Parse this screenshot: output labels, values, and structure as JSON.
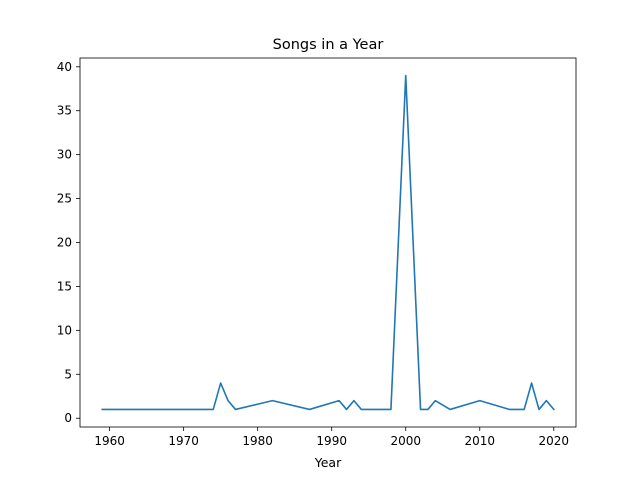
{
  "chart_data": {
    "type": "line",
    "title": "Songs in a Year",
    "xlabel": "Year",
    "ylabel": "",
    "xlim": [
      1956,
      2023
    ],
    "ylim": [
      -1,
      41
    ],
    "x_ticks": [
      1960,
      1970,
      1980,
      1990,
      2000,
      2010,
      2020
    ],
    "y_ticks": [
      0,
      5,
      10,
      15,
      20,
      25,
      30,
      35,
      40
    ],
    "grid": false,
    "series": [
      {
        "color": "#1f77b4",
        "x": [
          1959,
          1974,
          1975,
          1976,
          1977,
          1982,
          1987,
          1991,
          1992,
          1993,
          1994,
          1998,
          2000,
          2002,
          2003,
          2004,
          2006,
          2010,
          2014,
          2016,
          2017,
          2018,
          2019,
          2020
        ],
        "y": [
          1,
          1,
          4,
          2,
          1,
          2,
          1,
          2,
          1,
          2,
          1,
          1,
          39,
          1,
          1,
          2,
          1,
          2,
          1,
          1,
          4,
          1,
          2,
          1
        ]
      }
    ]
  }
}
